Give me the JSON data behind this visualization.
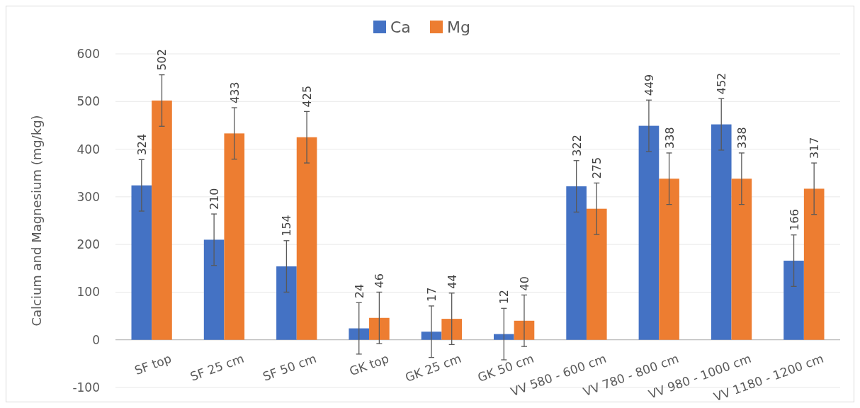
{
  "chart_data": {
    "type": "bar",
    "ylabel": "Calcium and Magnesium (mg/kg)",
    "categories": [
      "SF top",
      "SF 25 cm",
      "SF 50 cm",
      "GK top",
      "GK 25 cm",
      "GK 50 cm",
      "VV 580 - 600 cm",
      "VV 780 - 800 cm",
      "VV 980 - 1000 cm",
      "VV 1180 - 1200 cm"
    ],
    "series": [
      {
        "name": "Ca",
        "color": "#4472c4",
        "values": [
          324,
          210,
          154,
          24,
          17,
          12,
          322,
          449,
          452,
          166
        ],
        "errors": [
          54,
          54,
          54,
          54,
          54,
          54,
          54,
          54,
          54,
          54
        ]
      },
      {
        "name": "Mg",
        "color": "#ed7d31",
        "values": [
          502,
          433,
          425,
          46,
          44,
          40,
          275,
          338,
          338,
          317
        ],
        "errors": [
          54,
          54,
          54,
          54,
          54,
          54,
          54,
          54,
          54,
          54
        ]
      }
    ],
    "ylim": [
      -100,
      600
    ],
    "yticks": [
      -100,
      0,
      100,
      200,
      300,
      400,
      500,
      600
    ],
    "grid": "y",
    "legend": "top",
    "data_labels": true
  }
}
